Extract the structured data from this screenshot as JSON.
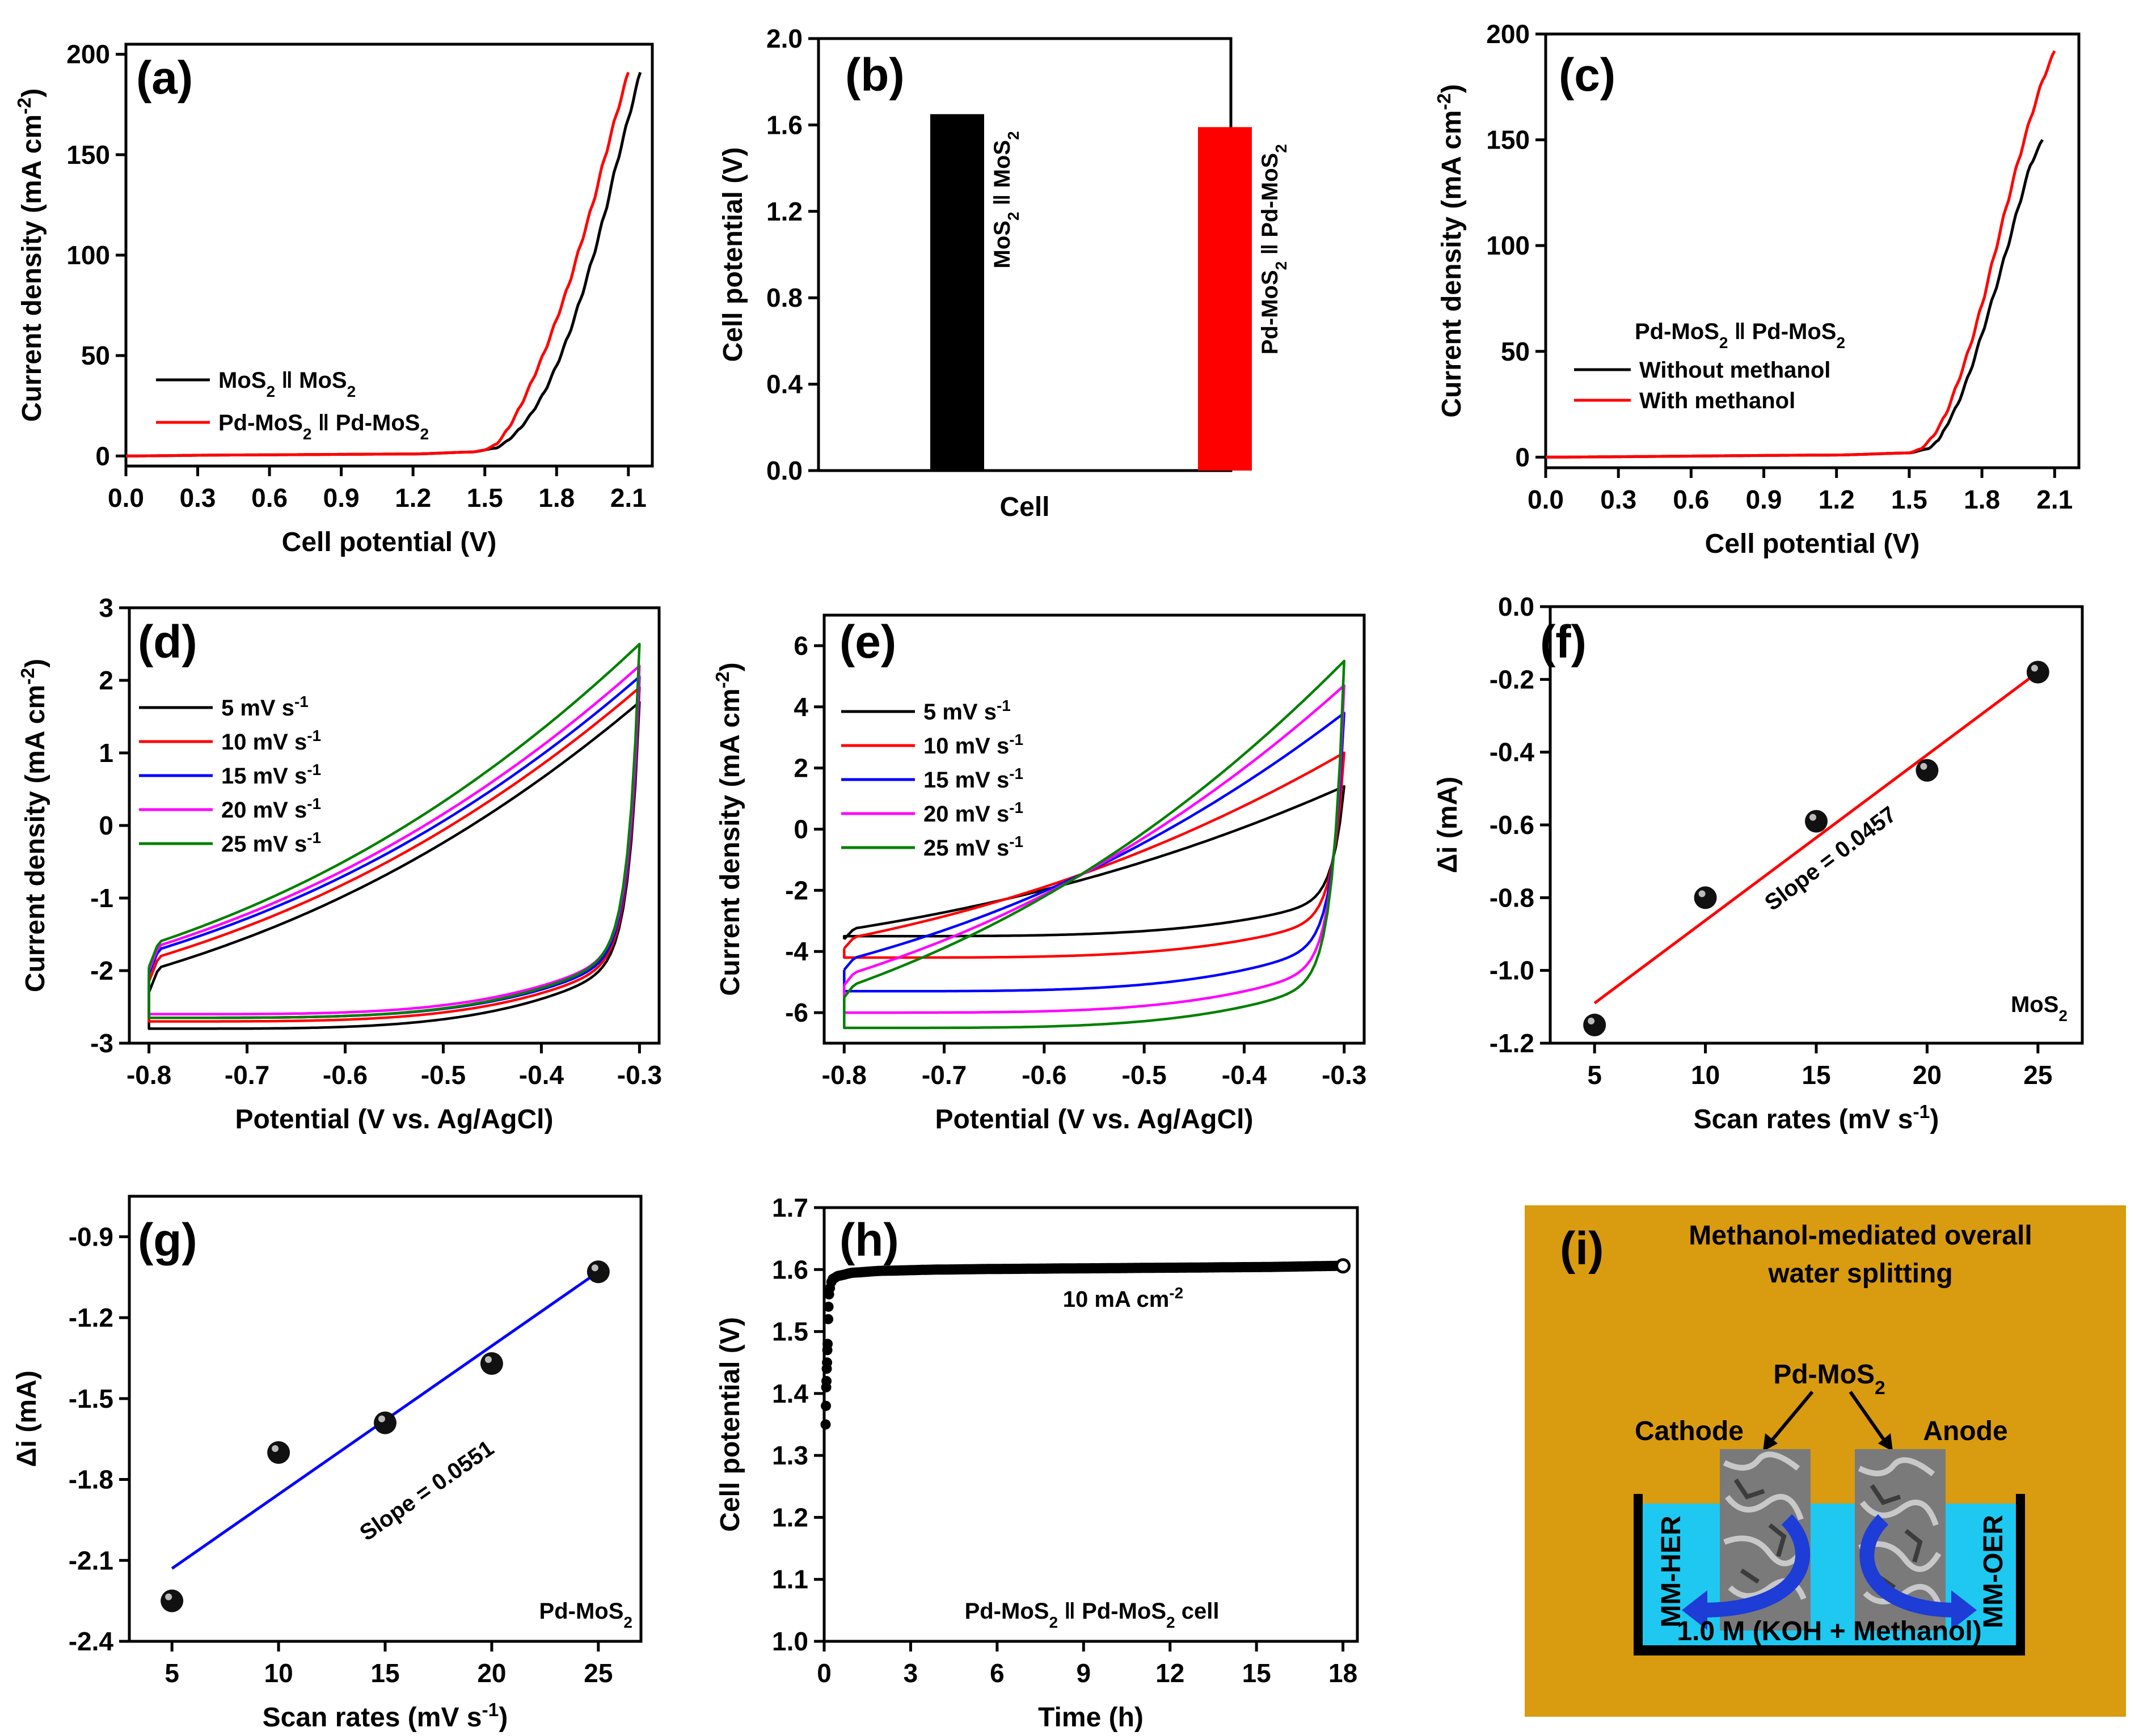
{
  "colors": {
    "black": "#000000",
    "red": "#ff0000",
    "blue": "#0000ff",
    "magenta": "#ff00ff",
    "green": "#008000",
    "orange": "#d99b0f",
    "water": "#1ec8f0",
    "arrow": "#1e3cd6"
  },
  "chart_data": [
    {
      "panel": "(a)",
      "type": "line",
      "xlabel": "Cell potential (V)",
      "ylabel": "Current density (mA cm-2)",
      "xlim": [
        0,
        2.2
      ],
      "ylim": [
        -5,
        205
      ],
      "xticks": [
        "0.0",
        "0.3",
        "0.6",
        "0.9",
        "1.2",
        "1.5",
        "1.8",
        "2.1"
      ],
      "yticks": [
        "0",
        "50",
        "100",
        "150",
        "200"
      ],
      "legend": [
        "MoS2 ǁ MoS2",
        "Pd-MoS2 ǁ Pd-MoS2"
      ],
      "series": [
        {
          "name": "MoS2 ǁ MoS2",
          "color": "black",
          "x": [
            0,
            0.45,
            1.2,
            1.45,
            1.55,
            1.6,
            1.65,
            1.7,
            1.75,
            1.8,
            1.85,
            1.9,
            1.95,
            2.0,
            2.05,
            2.1,
            2.15
          ],
          "y": [
            0,
            0.5,
            1,
            2,
            4,
            8,
            14,
            22,
            32,
            45,
            60,
            78,
            98,
            120,
            145,
            168,
            191
          ]
        },
        {
          "name": "Pd-MoS2 ǁ Pd-MoS2",
          "color": "red",
          "x": [
            0,
            0.45,
            1.2,
            1.45,
            1.5,
            1.55,
            1.6,
            1.65,
            1.7,
            1.75,
            1.8,
            1.85,
            1.9,
            1.95,
            2.0,
            2.05,
            2.1
          ],
          "y": [
            0,
            0.5,
            1,
            2,
            3,
            6,
            14,
            25,
            38,
            52,
            68,
            85,
            105,
            125,
            148,
            170,
            191
          ]
        }
      ]
    },
    {
      "panel": "(b)",
      "type": "bar",
      "xlabel": "Cell",
      "ylabel": "Cell potential (V)",
      "ylim": [
        0,
        2.0
      ],
      "yticks": [
        "0.0",
        "0.4",
        "0.8",
        "1.2",
        "1.6",
        "2.0"
      ],
      "categories": [
        "MoS2 ǁ MoS2",
        "Pd-MoS2 ǁ Pd-MoS2"
      ],
      "values": [
        1.65,
        1.59
      ],
      "bar_colors": [
        "black",
        "red"
      ]
    },
    {
      "panel": "(c)",
      "type": "line",
      "xlabel": "Cell potential (V)",
      "ylabel": "Current density (mA cm-2)",
      "xlim": [
        0,
        2.2
      ],
      "ylim": [
        -5,
        200
      ],
      "xticks": [
        "0.0",
        "0.3",
        "0.6",
        "0.9",
        "1.2",
        "1.5",
        "1.8",
        "2.1"
      ],
      "yticks": [
        "0",
        "50",
        "100",
        "150",
        "200"
      ],
      "legend_title": "Pd-MoS2 ǁ Pd-MoS2",
      "legend": [
        "Without methanol",
        "With methanol"
      ],
      "series": [
        {
          "name": "Without methanol",
          "color": "black",
          "x": [
            0,
            1.2,
            1.5,
            1.58,
            1.62,
            1.65,
            1.7,
            1.75,
            1.8,
            1.85,
            1.9,
            1.95,
            2.0,
            2.05
          ],
          "y": [
            0,
            1,
            2,
            4,
            8,
            14,
            25,
            40,
            58,
            77,
            97,
            118,
            138,
            150
          ]
        },
        {
          "name": "With methanol",
          "color": "red",
          "x": [
            0,
            1.2,
            1.5,
            1.55,
            1.6,
            1.65,
            1.7,
            1.75,
            1.8,
            1.85,
            1.9,
            1.95,
            2.0,
            2.05,
            2.1
          ],
          "y": [
            0,
            1,
            2,
            4,
            10,
            20,
            35,
            52,
            72,
            95,
            118,
            140,
            160,
            178,
            192
          ]
        }
      ]
    },
    {
      "panel": "(d)",
      "type": "line",
      "xlabel": "Potential (V vs. Ag/AgCl)",
      "ylabel": "Current density (mA cm-2)",
      "xlim": [
        -0.82,
        -0.28
      ],
      "ylim": [
        -3,
        3
      ],
      "xticks": [
        "-0.8",
        "-0.7",
        "-0.6",
        "-0.5",
        "-0.4",
        "-0.3"
      ],
      "yticks": [
        "-3",
        "-2",
        "-1",
        "0",
        "1",
        "2",
        "3"
      ],
      "legend": [
        "5 mV s-1",
        "10 mV s-1",
        "15 mV s-1",
        "20 mV s-1",
        "25 mV s-1"
      ],
      "cv": [
        {
          "color": "black",
          "top_start": -2.0,
          "top_end": 1.7,
          "bot_start": -2.8,
          "bot_end": -1.8
        },
        {
          "color": "red",
          "top_start": -1.85,
          "top_end": 1.9,
          "bot_start": -2.7,
          "bot_end": -1.75
        },
        {
          "color": "blue",
          "top_start": -1.75,
          "top_end": 2.05,
          "bot_start": -2.65,
          "bot_end": -1.7
        },
        {
          "color": "magenta",
          "top_start": -1.7,
          "top_end": 2.2,
          "bot_start": -2.6,
          "bot_end": -1.65
        },
        {
          "color": "green",
          "top_start": -1.65,
          "top_end": 2.5,
          "bot_start": -2.65,
          "bot_end": -1.65
        }
      ]
    },
    {
      "panel": "(e)",
      "type": "line",
      "xlabel": "Potential (V vs. Ag/AgCl)",
      "ylabel": "Current density (mA cm-2)",
      "xlim": [
        -0.82,
        -0.28
      ],
      "ylim": [
        -7,
        7
      ],
      "xticks": [
        "-0.8",
        "-0.7",
        "-0.6",
        "-0.5",
        "-0.4",
        "-0.3"
      ],
      "yticks": [
        "-6",
        "-4",
        "-2",
        "0",
        "2",
        "4",
        "6"
      ],
      "legend": [
        "5 mV s-1",
        "10 mV s-1",
        "15 mV s-1",
        "20 mV s-1",
        "25 mV s-1"
      ],
      "cv": [
        {
          "color": "black",
          "top_start": -3.3,
          "top_end": 1.4,
          "bot_start": -3.5,
          "bot_end": -2.2
        },
        {
          "color": "red",
          "top_start": -3.6,
          "top_end": 2.5,
          "bot_start": -4.2,
          "bot_end": -2.8
        },
        {
          "color": "blue",
          "top_start": -4.3,
          "top_end": 3.8,
          "bot_start": -5.3,
          "bot_end": -3.6
        },
        {
          "color": "magenta",
          "top_start": -4.8,
          "top_end": 4.7,
          "bot_start": -6.0,
          "bot_end": -4.3
        },
        {
          "color": "green",
          "top_start": -5.2,
          "top_end": 5.5,
          "bot_start": -6.5,
          "bot_end": -4.8
        }
      ]
    },
    {
      "panel": "(f)",
      "type": "scatter",
      "xlabel": "Scan rates (mV s-1)",
      "ylabel": "Δi (mA)",
      "xlim": [
        3,
        27
      ],
      "ylim": [
        -1.2,
        0.0
      ],
      "xticks": [
        "5",
        "10",
        "15",
        "20",
        "25"
      ],
      "yticks": [
        "-1.2",
        "-1.0",
        "-0.8",
        "-0.6",
        "-0.4",
        "-0.2",
        "0.0"
      ],
      "x": [
        5,
        10,
        15,
        20,
        25
      ],
      "y": [
        -1.15,
        -0.8,
        -0.59,
        -0.45,
        -0.18
      ],
      "fit": {
        "x": [
          5,
          25
        ],
        "y": [
          -1.09,
          -0.18
        ],
        "color": "red"
      },
      "slope_label": "Slope = 0.0457",
      "sample": "MoS2"
    },
    {
      "panel": "(g)",
      "type": "scatter",
      "xlabel": "Scan rates (mV s-1)",
      "ylabel": "Δi (mA)",
      "xlim": [
        3,
        27
      ],
      "ylim": [
        -2.4,
        -0.75
      ],
      "xticks": [
        "5",
        "10",
        "15",
        "20",
        "25"
      ],
      "yticks": [
        "-2.4",
        "-2.1",
        "-1.8",
        "-1.5",
        "-1.2",
        "-0.9"
      ],
      "x": [
        5,
        10,
        15,
        20,
        25
      ],
      "y": [
        -2.25,
        -1.7,
        -1.59,
        -1.37,
        -1.03
      ],
      "fit": {
        "x": [
          5,
          25
        ],
        "y": [
          -2.13,
          -1.03
        ],
        "color": "blue"
      },
      "slope_label": "Slope = 0.0551",
      "sample": "Pd-MoS2"
    },
    {
      "panel": "(h)",
      "type": "line",
      "xlabel": "Time (h)",
      "ylabel": "Cell potential (V)",
      "xlim": [
        0,
        18.5
      ],
      "ylim": [
        1.0,
        1.7
      ],
      "xticks": [
        "0",
        "3",
        "6",
        "9",
        "12",
        "15",
        "18"
      ],
      "yticks": [
        "1.0",
        "1.1",
        "1.2",
        "1.3",
        "1.4",
        "1.5",
        "1.6",
        "1.7"
      ],
      "annotation": "10 mA cm-2",
      "footer": "Pd-MoS2 ǁ Pd-MoS2 cell",
      "x": [
        0.05,
        0.08,
        0.1,
        0.12,
        0.15,
        0.2,
        0.3,
        0.5,
        1,
        2,
        4,
        6,
        9,
        12,
        15,
        18
      ],
      "y": [
        1.35,
        1.42,
        1.44,
        1.48,
        1.54,
        1.57,
        1.585,
        1.59,
        1.595,
        1.598,
        1.6,
        1.601,
        1.602,
        1.603,
        1.604,
        1.606
      ]
    }
  ],
  "panel_i": {
    "label": "(i)",
    "title_line1": "Methanol-mediated overall",
    "title_line2": "water splitting",
    "catalyst": "Pd-MoS2",
    "cathode": "Cathode",
    "anode": "Anode",
    "left_reaction": "MM-HER",
    "right_reaction": "MM-OER",
    "electrolyte": "1.0 M (KOH + Methanol)"
  }
}
